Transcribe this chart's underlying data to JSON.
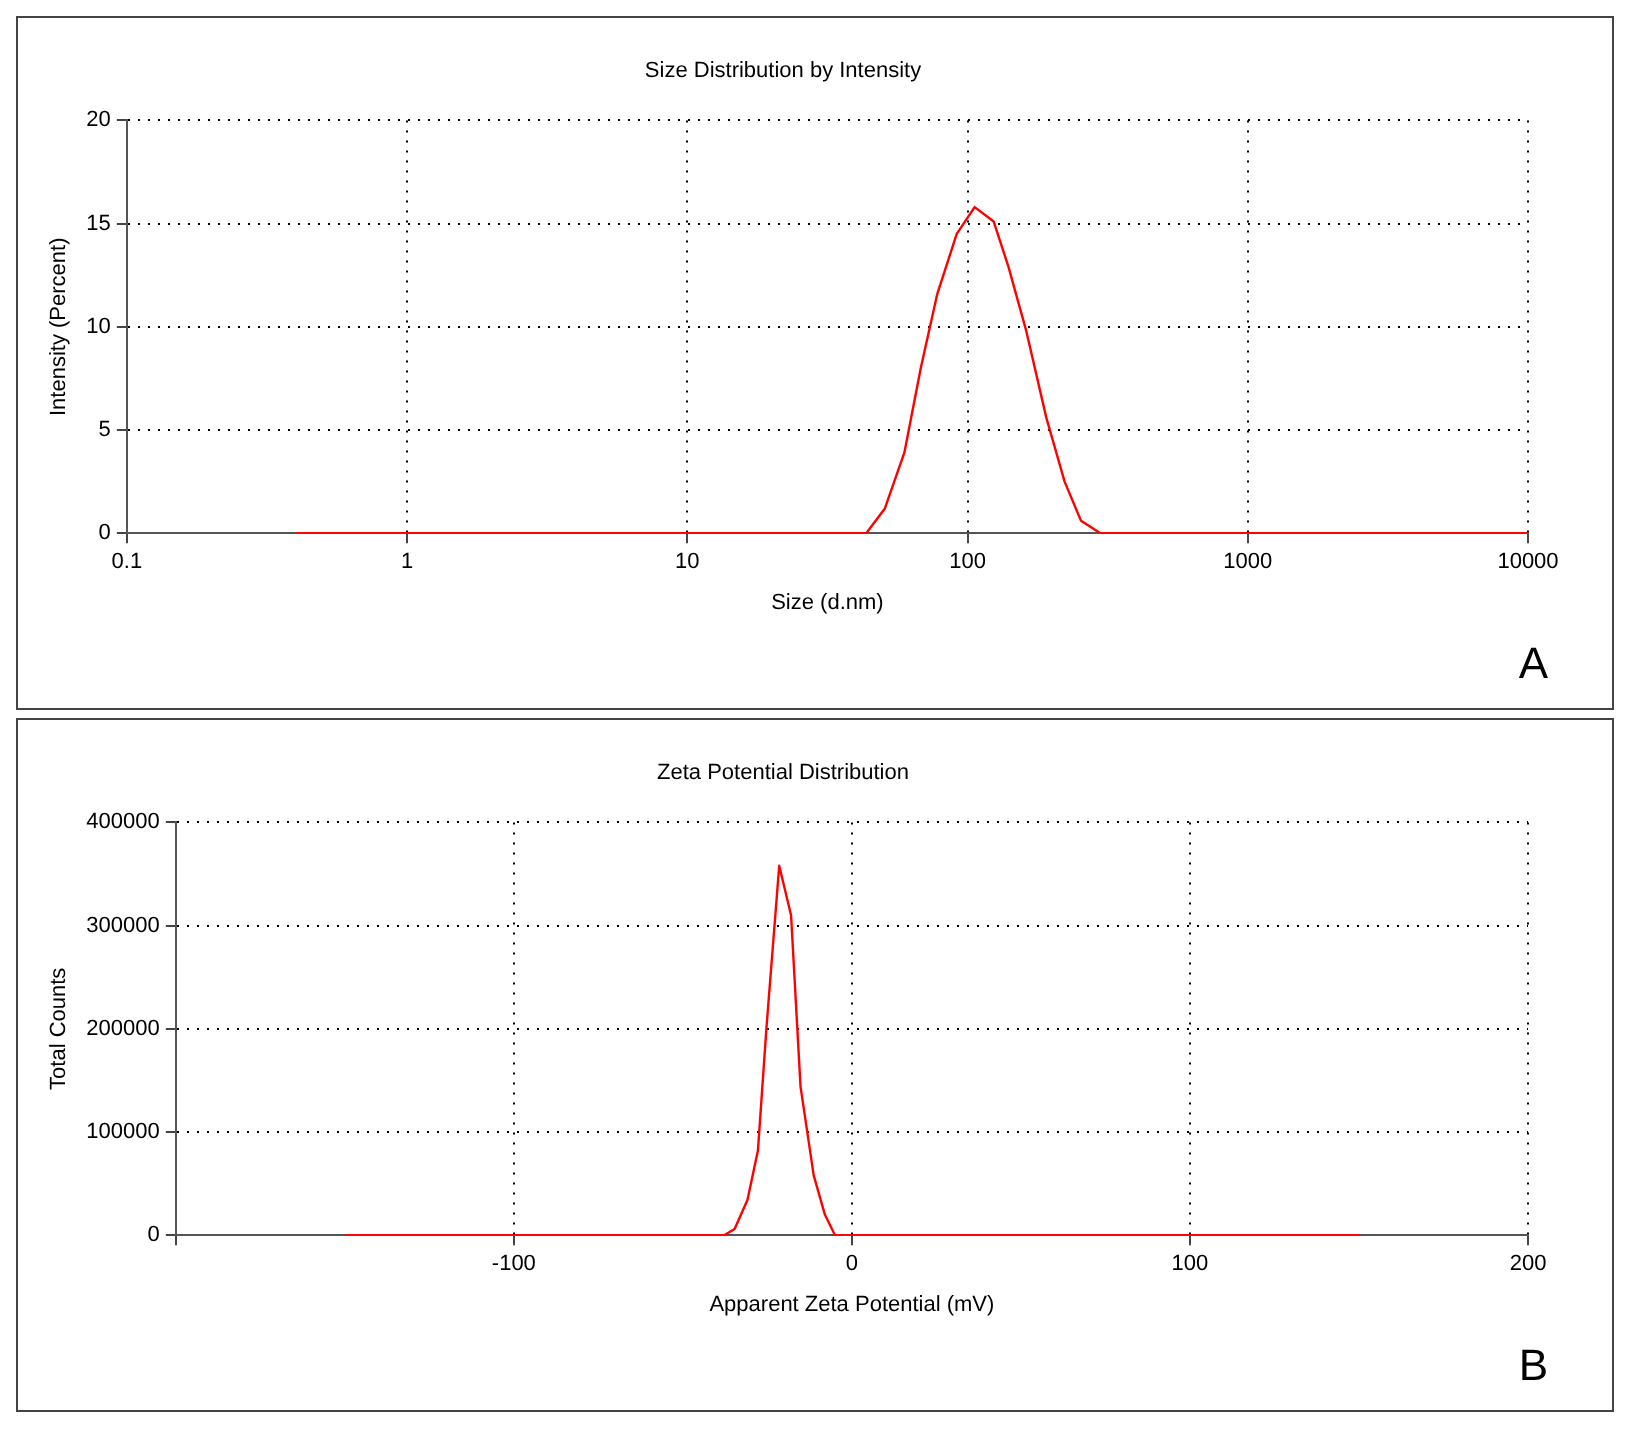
{
  "chart_data": [
    {
      "type": "line",
      "title": "Size Distribution by Intensity",
      "xlabel": "Size (d.nm)",
      "ylabel": "Intensity (Percent)",
      "log": "x",
      "xlim": [
        0.1,
        10000
      ],
      "xticks": [
        0.1,
        1,
        10,
        100,
        1000,
        10000
      ],
      "ylim": [
        0,
        20
      ],
      "yticks": [
        0,
        5,
        10,
        15,
        20
      ],
      "grid": true,
      "annotations": [
        "A"
      ],
      "x": [
        0.4,
        43.5,
        50.7,
        59.5,
        68.1,
        78,
        91.5,
        106,
        124,
        140,
        162,
        191,
        222,
        254,
        298,
        10000
      ],
      "series": [
        {
          "color": "#ff0000",
          "values": [
            0,
            0,
            1.2,
            3.9,
            8,
            11.6,
            14.5,
            15.8,
            15.1,
            12.9,
            9.8,
            5.6,
            2.5,
            0.6,
            0,
            0
          ]
        }
      ]
    },
    {
      "type": "line",
      "title": "Zeta Potential Distribution",
      "xlabel": "Apparent Zeta Potential (mV)",
      "ylabel": "Total Counts",
      "xlim": [
        -200,
        200
      ],
      "xticks": [
        {
          "value": -200,
          "label": null
        },
        -100,
        0,
        100,
        200
      ],
      "ylim": [
        0,
        400000
      ],
      "yticks": [
        0,
        100000,
        200000,
        300000,
        400000
      ],
      "grid": true,
      "annotations": [
        "B"
      ],
      "x": [
        -150,
        -37.8,
        -34.7,
        -30.9,
        -27.8,
        -25.3,
        -21.5,
        -18,
        -15.2,
        -11.3,
        -8,
        -5,
        150
      ],
      "series": [
        {
          "color": "#ff0000",
          "values": [
            0,
            0,
            6000,
            34000,
            82000,
            200000,
            358000,
            310000,
            144000,
            58000,
            20000,
            0,
            0
          ]
        }
      ]
    }
  ]
}
